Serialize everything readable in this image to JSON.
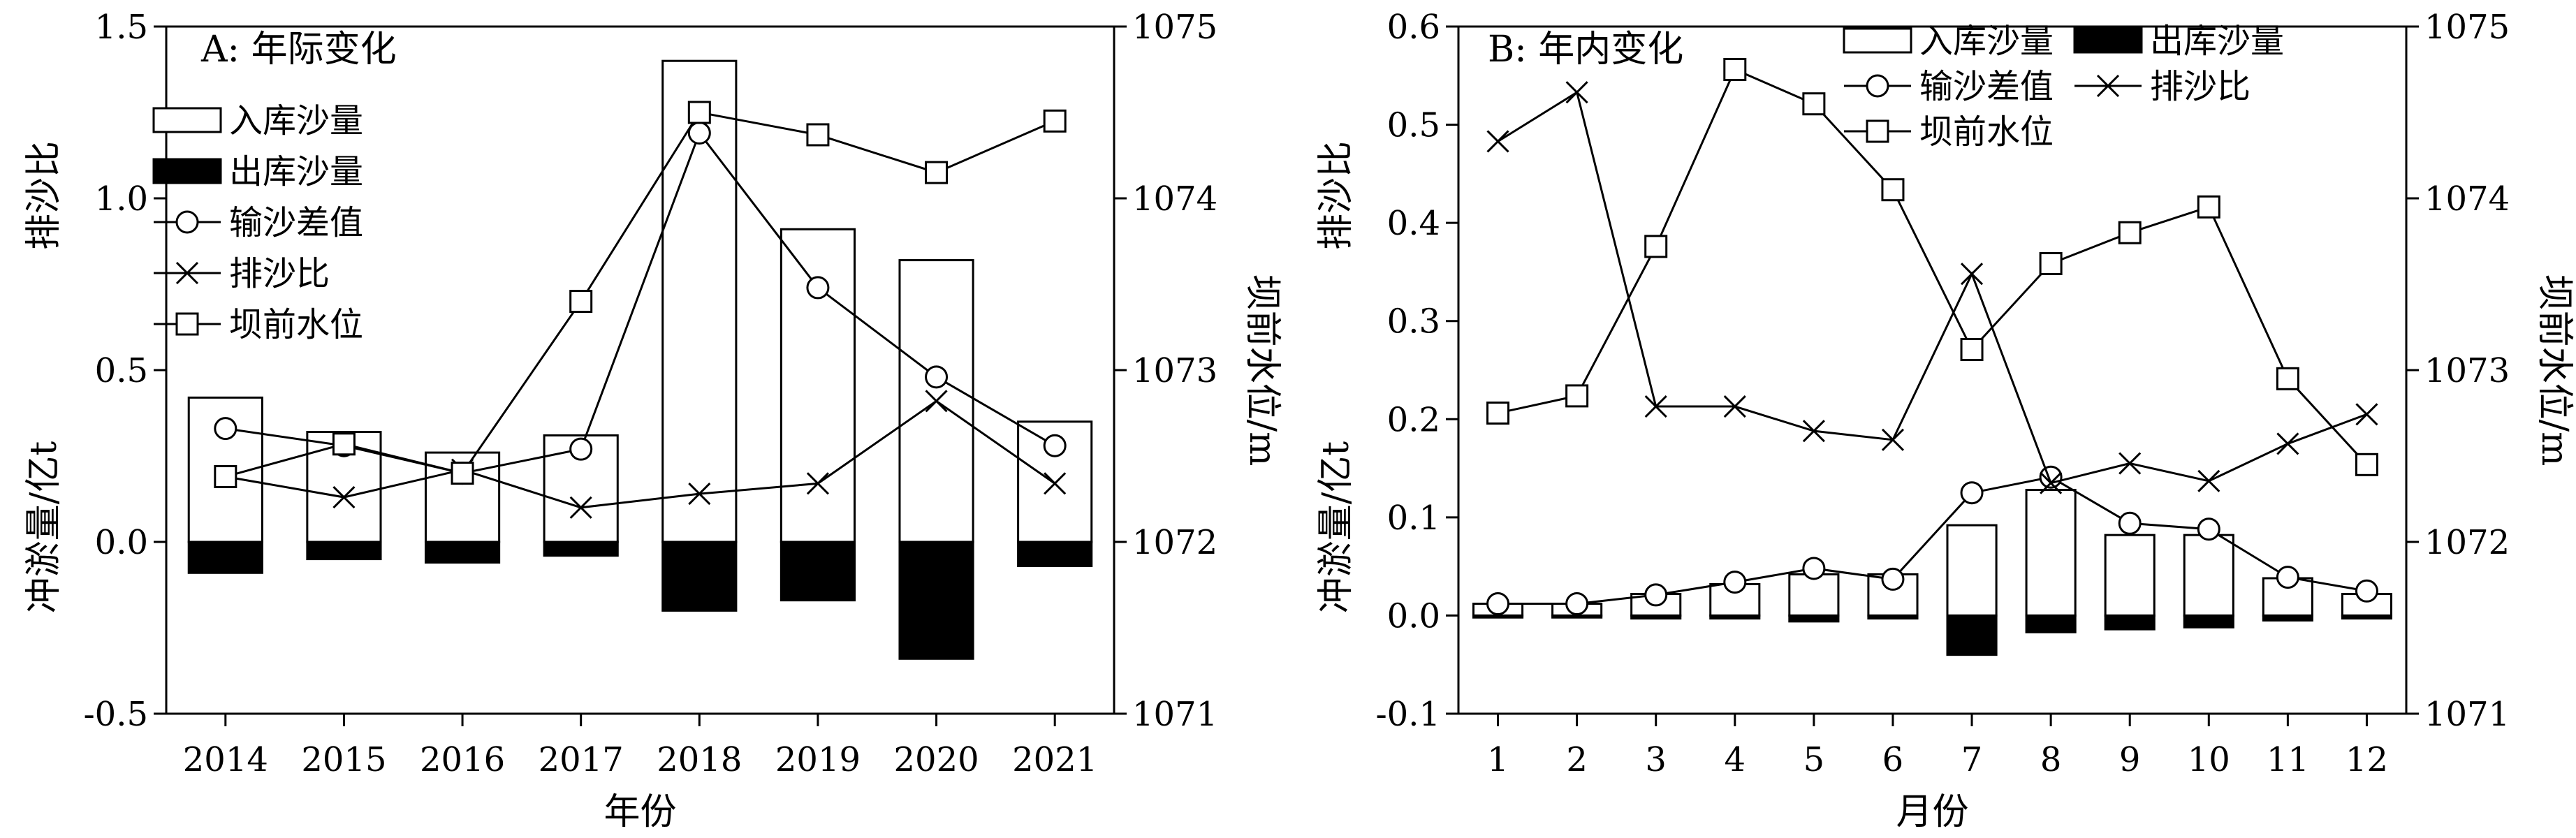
{
  "figure": {
    "panel_a_label": "A: 年际变化",
    "panel_b_label": "B: 年内变化"
  },
  "chart_data": [
    {
      "type": "bar",
      "panel": "A",
      "title": "A: 年际变化",
      "xlabel": "年份",
      "ylabel_left_top": "排沙比",
      "ylabel_left_bottom": "冲淤量/亿t",
      "ylabel_right": "坝前水位/m",
      "categories": [
        "2014",
        "2015",
        "2016",
        "2017",
        "2018",
        "2019",
        "2020",
        "2021"
      ],
      "ylim": [
        -0.5,
        1.5
      ],
      "yticks": [
        "-0.5",
        "0.0",
        "0.5",
        "1.0",
        "1.5"
      ],
      "y2lim": [
        1071,
        1075
      ],
      "y2ticks": [
        "1071",
        "1072",
        "1073",
        "1074",
        "1075"
      ],
      "legend_position": "left",
      "series": [
        {
          "name": "入库沙量",
          "kind": "bar",
          "style": "open",
          "axis": "left",
          "values": [
            0.42,
            0.32,
            0.26,
            0.31,
            1.4,
            0.91,
            0.82,
            0.35
          ]
        },
        {
          "name": "出库沙量",
          "kind": "bar",
          "style": "filled",
          "axis": "left",
          "values": [
            -0.09,
            -0.05,
            -0.06,
            -0.04,
            -0.2,
            -0.17,
            -0.34,
            -0.07
          ]
        },
        {
          "name": "输沙差值",
          "kind": "line",
          "marker": "circle",
          "axis": "left",
          "values": [
            0.33,
            0.28,
            0.2,
            0.27,
            1.19,
            0.74,
            0.48,
            0.28
          ]
        },
        {
          "name": "排沙比",
          "kind": "line",
          "marker": "x",
          "axis": "left",
          "values": [
            0.19,
            0.13,
            0.21,
            0.1,
            0.14,
            0.17,
            0.41,
            0.17
          ]
        },
        {
          "name": "坝前水位",
          "kind": "line",
          "marker": "square",
          "axis": "right",
          "values": [
            1072.38,
            1072.57,
            1072.4,
            1073.4,
            1074.5,
            1074.37,
            1074.15,
            1074.45
          ]
        }
      ]
    },
    {
      "type": "bar",
      "panel": "B",
      "title": "B: 年内变化",
      "xlabel": "月份",
      "ylabel_left_top": "排沙比",
      "ylabel_left_bottom": "冲淤量/亿t",
      "ylabel_right": "坝前水位/m",
      "categories": [
        "1",
        "2",
        "3",
        "4",
        "5",
        "6",
        "7",
        "8",
        "9",
        "10",
        "11",
        "12"
      ],
      "ylim": [
        -0.1,
        0.6
      ],
      "yticks": [
        "-0.1",
        "0.0",
        "0.1",
        "0.2",
        "0.3",
        "0.4",
        "0.5",
        "0.6"
      ],
      "y2lim": [
        1071,
        1075
      ],
      "y2ticks": [
        "1071",
        "1072",
        "1073",
        "1074",
        "1075"
      ],
      "legend_position": "top-right",
      "series": [
        {
          "name": "入库沙量",
          "kind": "bar",
          "style": "open",
          "axis": "left",
          "values": [
            0.012,
            0.012,
            0.022,
            0.032,
            0.042,
            0.042,
            0.092,
            0.128,
            0.082,
            0.082,
            0.038,
            0.022
          ]
        },
        {
          "name": "出库沙量",
          "kind": "bar",
          "style": "filled",
          "axis": "left",
          "values": [
            -0.002,
            -0.002,
            -0.003,
            -0.003,
            -0.006,
            -0.003,
            -0.04,
            -0.017,
            -0.014,
            -0.012,
            -0.005,
            -0.003
          ]
        },
        {
          "name": "输沙差值",
          "kind": "line",
          "marker": "circle",
          "axis": "left",
          "values": [
            0.012,
            0.012,
            0.021,
            0.034,
            0.048,
            0.037,
            0.125,
            0.141,
            0.094,
            0.088,
            0.039,
            0.025
          ]
        },
        {
          "name": "排沙比",
          "kind": "line",
          "marker": "x",
          "axis": "left",
          "values": [
            0.483,
            0.533,
            0.213,
            0.213,
            0.188,
            0.179,
            0.348,
            0.135,
            0.155,
            0.137,
            0.175,
            0.205
          ]
        },
        {
          "name": "坝前水位",
          "kind": "line",
          "marker": "square",
          "axis": "right",
          "values": [
            1072.75,
            1072.85,
            1073.72,
            1074.75,
            1074.55,
            1074.05,
            1073.12,
            1073.62,
            1073.8,
            1073.95,
            1072.95,
            1072.45
          ]
        }
      ]
    }
  ]
}
